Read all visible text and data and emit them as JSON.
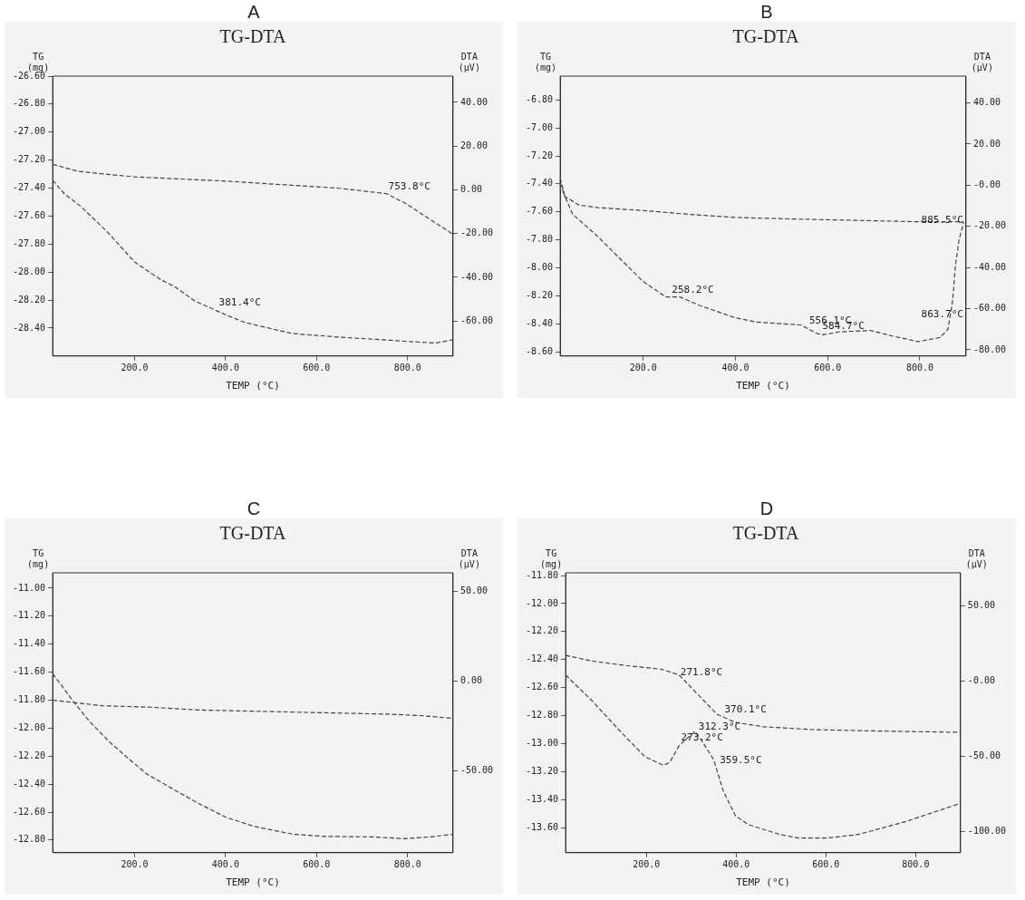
{
  "chart_data": [
    {
      "type": "line",
      "title": "A",
      "subtitle": "TG-DTA",
      "xlabel": "TEMP (°C)",
      "ylabel": "TG\n(mg)",
      "y2label": "DTA\n(μV)",
      "line_style": "dashed",
      "grid": false,
      "xlim": [
        20,
        900
      ],
      "xticks": [
        {
          "value": 200,
          "label": "200.0"
        },
        {
          "value": 400,
          "label": "400.0"
        },
        {
          "value": 600,
          "label": "600.0"
        },
        {
          "value": 800,
          "label": "800.0"
        }
      ],
      "ylim": [
        -28.6,
        -26.6
      ],
      "yticks": [
        {
          "value": -26.6,
          "label": "-26.60"
        },
        {
          "value": -26.8,
          "label": "-26.80"
        },
        {
          "value": -27.0,
          "label": "-27.00"
        },
        {
          "value": -27.2,
          "label": "-27.20"
        },
        {
          "value": -27.4,
          "label": "-27.40"
        },
        {
          "value": -27.6,
          "label": "-27.60"
        },
        {
          "value": -27.8,
          "label": "-27.80"
        },
        {
          "value": -28.0,
          "label": "-28.00"
        },
        {
          "value": -28.2,
          "label": "-28.20"
        },
        {
          "value": -28.4,
          "label": "-28.40"
        }
      ],
      "y2lim": [
        -76,
        52
      ],
      "y2ticks": [
        {
          "value": 40,
          "label": "40.00"
        },
        {
          "value": 20,
          "label": "20.00"
        },
        {
          "value": 0,
          "label": "0.00"
        },
        {
          "value": -20,
          "label": "-20.00"
        },
        {
          "value": -40,
          "label": "-40.00"
        },
        {
          "value": -60,
          "label": "-60.00"
        }
      ],
      "series": [
        {
          "color": "#444444",
          "x": [
            20,
            75,
            200,
            400,
            646,
            754,
            796,
            900
          ],
          "values": [
            -27.23,
            -27.28,
            -27.32,
            -27.35,
            -27.4,
            -27.44,
            -27.51,
            -27.73
          ]
        },
        {
          "color": "#444444",
          "axis": "y2",
          "x": [
            20,
            46,
            82,
            139,
            200,
            254,
            289,
            332,
            400,
            443,
            546,
            646,
            761,
            861,
            900
          ],
          "values": [
            4.4,
            -1.9,
            -7.6,
            -19,
            -33,
            -40.6,
            -44.4,
            -50.8,
            -57.1,
            -60.7,
            -65.7,
            -67.3,
            -68.8,
            -70.1,
            -68.6
          ]
        }
      ],
      "annotations": [
        {
          "text": "753.8°C",
          "x": 754,
          "y": -27.44
        },
        {
          "text": "381.4°C",
          "x": 381.4,
          "y": -28.27
        }
      ]
    },
    {
      "type": "line",
      "title": "B",
      "subtitle": "TG-DTA",
      "xlabel": "TEMP (°C)",
      "ylabel": "TG\n(mg)",
      "y2label": "DTA\n(μV)",
      "line_style": "dashed",
      "grid": false,
      "xlim": [
        20,
        900
      ],
      "xticks": [
        {
          "value": 200,
          "label": "200.0"
        },
        {
          "value": 400,
          "label": "400.0"
        },
        {
          "value": 600,
          "label": "600.0"
        },
        {
          "value": 800,
          "label": "800.0"
        }
      ],
      "ylim": [
        -8.63,
        -6.63
      ],
      "yticks": [
        {
          "value": -6.8,
          "label": "-6.80"
        },
        {
          "value": -7.0,
          "label": "-7.00"
        },
        {
          "value": -7.2,
          "label": "-7.20"
        },
        {
          "value": -7.4,
          "label": "-7.40"
        },
        {
          "value": -7.6,
          "label": "-7.60"
        },
        {
          "value": -7.8,
          "label": "-7.80"
        },
        {
          "value": -8.0,
          "label": "-8.00"
        },
        {
          "value": -8.2,
          "label": "-8.20"
        },
        {
          "value": -8.4,
          "label": "-8.40"
        },
        {
          "value": -8.6,
          "label": "-8.60"
        }
      ],
      "y2lim": [
        -83,
        53
      ],
      "y2ticks": [
        {
          "value": 40,
          "label": "40.00"
        },
        {
          "value": 20,
          "label": "20.00"
        },
        {
          "value": 0,
          "label": "-0.00"
        },
        {
          "value": -20,
          "label": "-20.00"
        },
        {
          "value": -40,
          "label": "-40.00"
        },
        {
          "value": -60,
          "label": "-60.00"
        },
        {
          "value": -80,
          "label": "-80.00"
        }
      ],
      "series": [
        {
          "color": "#444444",
          "x": [
            20,
            30,
            60,
            102,
            200,
            308,
            401,
            514,
            652,
            789,
            895
          ],
          "values": [
            -7.39,
            -7.49,
            -7.55,
            -7.57,
            -7.59,
            -7.62,
            -7.64,
            -7.65,
            -7.66,
            -7.67,
            -7.67
          ]
        },
        {
          "color": "#444444",
          "axis": "y2",
          "x": [
            20,
            30,
            47,
            102,
            157,
            200,
            249,
            280,
            322,
            401,
            445,
            542,
            576,
            590,
            624,
            693,
            741,
            796,
            844,
            861,
            871,
            877,
            885,
            895
          ],
          "values": [
            3.5,
            -5.3,
            -14.1,
            -25,
            -37.3,
            -46.8,
            -54.3,
            -54.3,
            -58.4,
            -64.5,
            -66.5,
            -67.9,
            -72,
            -72.7,
            -71.3,
            -70.6,
            -73.3,
            -76,
            -74,
            -70,
            -56.3,
            -39.3,
            -26.4,
            -18.2
          ]
        }
      ],
      "annotations": [
        {
          "text": "258.2°C",
          "x": 258.2,
          "y": -8.21
        },
        {
          "text": "556.1°C",
          "x": 556.1,
          "y": -8.43
        },
        {
          "text": "584.7°C",
          "x": 584.7,
          "y": -8.47
        },
        {
          "text": "885.5°C",
          "x": 885.5,
          "y": -7.71
        },
        {
          "text": "863.7°C",
          "x": 863.7,
          "y": -8.38
        }
      ]
    },
    {
      "type": "line",
      "title": "C",
      "subtitle": "TG-DTA",
      "xlabel": "TEMP (°C)",
      "ylabel": "TG\n(mg)",
      "y2label": "DTA\n(μV)",
      "line_style": "dashed",
      "grid": false,
      "xlim": [
        20,
        900
      ],
      "xticks": [
        {
          "value": 200,
          "label": "200.0"
        },
        {
          "value": 400,
          "label": "400.0"
        },
        {
          "value": 600,
          "label": "600.0"
        },
        {
          "value": 800,
          "label": "800.0"
        }
      ],
      "ylim": [
        -12.89,
        -10.89
      ],
      "yticks": [
        {
          "value": -11.0,
          "label": "-11.00"
        },
        {
          "value": -11.2,
          "label": "-11.20"
        },
        {
          "value": -11.4,
          "label": "-11.40"
        },
        {
          "value": -11.6,
          "label": "-11.60"
        },
        {
          "value": -11.8,
          "label": "-11.80"
        },
        {
          "value": -12.0,
          "label": "-12.00"
        },
        {
          "value": -12.2,
          "label": "-12.20"
        },
        {
          "value": -12.4,
          "label": "-12.40"
        },
        {
          "value": -12.6,
          "label": "-12.60"
        },
        {
          "value": -12.8,
          "label": "-12.80"
        }
      ],
      "y2lim": [
        -95.5,
        60.5
      ],
      "y2ticks": [
        {
          "value": 50,
          "label": "50.00"
        },
        {
          "value": 0,
          "label": "0.00"
        },
        {
          "value": -50,
          "label": "-50.00"
        }
      ],
      "series": [
        {
          "color": "#444444",
          "x": [
            20,
            129,
            234,
            338,
            478,
            618,
            758,
            828,
            900
          ],
          "values": [
            -11.8,
            -11.84,
            -11.85,
            -11.87,
            -11.88,
            -11.89,
            -11.9,
            -11.91,
            -11.93
          ]
        },
        {
          "color": "#444444",
          "axis": "y2",
          "x": [
            20,
            34,
            66,
            101,
            143,
            185,
            227,
            283,
            338,
            401,
            464,
            548,
            618,
            723,
            793,
            849,
            900
          ],
          "values": [
            4.2,
            -0.5,
            -11.4,
            -22.3,
            -33.3,
            -42.7,
            -51.7,
            -59.8,
            -67.7,
            -75.8,
            -80.9,
            -85.2,
            -86.4,
            -86.7,
            -87.7,
            -86.7,
            -85.3
          ]
        }
      ]
    },
    {
      "type": "line",
      "title": "D",
      "subtitle": "TG-DTA",
      "xlabel": "TEMP (°C)",
      "ylabel": "TG\n(mg)",
      "y2label": "DTA\n(μV)",
      "line_style": "dashed",
      "grid": false,
      "xlim": [
        20,
        900
      ],
      "xticks": [
        {
          "value": 200,
          "label": "200.0"
        },
        {
          "value": 400,
          "label": "400.0"
        },
        {
          "value": 600,
          "label": "600.0"
        },
        {
          "value": 800,
          "label": "800.0"
        }
      ],
      "ylim": [
        -13.78,
        -11.78
      ],
      "yticks": [
        {
          "value": -11.8,
          "label": "-11.80"
        },
        {
          "value": -12.0,
          "label": "-12.00"
        },
        {
          "value": -12.2,
          "label": "-12.20"
        },
        {
          "value": -12.4,
          "label": "-12.40"
        },
        {
          "value": -12.6,
          "label": "-12.60"
        },
        {
          "value": -12.8,
          "label": "-12.80"
        },
        {
          "value": -13.0,
          "label": "-13.00"
        },
        {
          "value": -13.2,
          "label": "-13.20"
        },
        {
          "value": -13.4,
          "label": "-13.40"
        },
        {
          "value": -13.6,
          "label": "-13.60"
        }
      ],
      "y2lim": [
        -114,
        72
      ],
      "y2ticks": [
        {
          "value": 50,
          "label": "50.00"
        },
        {
          "value": 0,
          "label": "-0.00"
        },
        {
          "value": -50,
          "label": "-50.00"
        },
        {
          "value": -100,
          "label": "-100.00"
        }
      ],
      "series": [
        {
          "color": "#444444",
          "x": [
            20,
            78,
            148,
            235,
            273,
            315,
            357,
            399,
            462,
            567,
            707,
            900
          ],
          "values": [
            -12.37,
            -12.41,
            -12.44,
            -12.47,
            -12.51,
            -12.65,
            -12.79,
            -12.85,
            -12.88,
            -12.9,
            -12.91,
            -12.92
          ]
        },
        {
          "color": "#444444",
          "axis": "y2",
          "x": [
            20,
            78,
            148,
            197,
            238,
            252,
            273,
            308,
            322,
            350,
            371,
            399,
            427,
            497,
            539,
            602,
            672,
            777,
            900
          ],
          "values": [
            4.1,
            -12.8,
            -35.3,
            -50.3,
            -55.9,
            -54,
            -42.8,
            -33.4,
            -39,
            -52.2,
            -72.8,
            -89.7,
            -95.3,
            -101.9,
            -104.3,
            -104.3,
            -101.9,
            -93.4,
            -81.2
          ]
        }
      ],
      "annotations": [
        {
          "text": "271.8°C",
          "x": 271.8,
          "y": -12.54
        },
        {
          "text": "370.1°C",
          "x": 370.1,
          "y": -12.81
        },
        {
          "text": "312.3°C",
          "x": 312.3,
          "y": -12.93
        },
        {
          "text": "273.2°C",
          "x": 273.2,
          "y": -13.01
        },
        {
          "text": "359.5°C",
          "x": 359.5,
          "y": -13.17
        }
      ]
    }
  ]
}
